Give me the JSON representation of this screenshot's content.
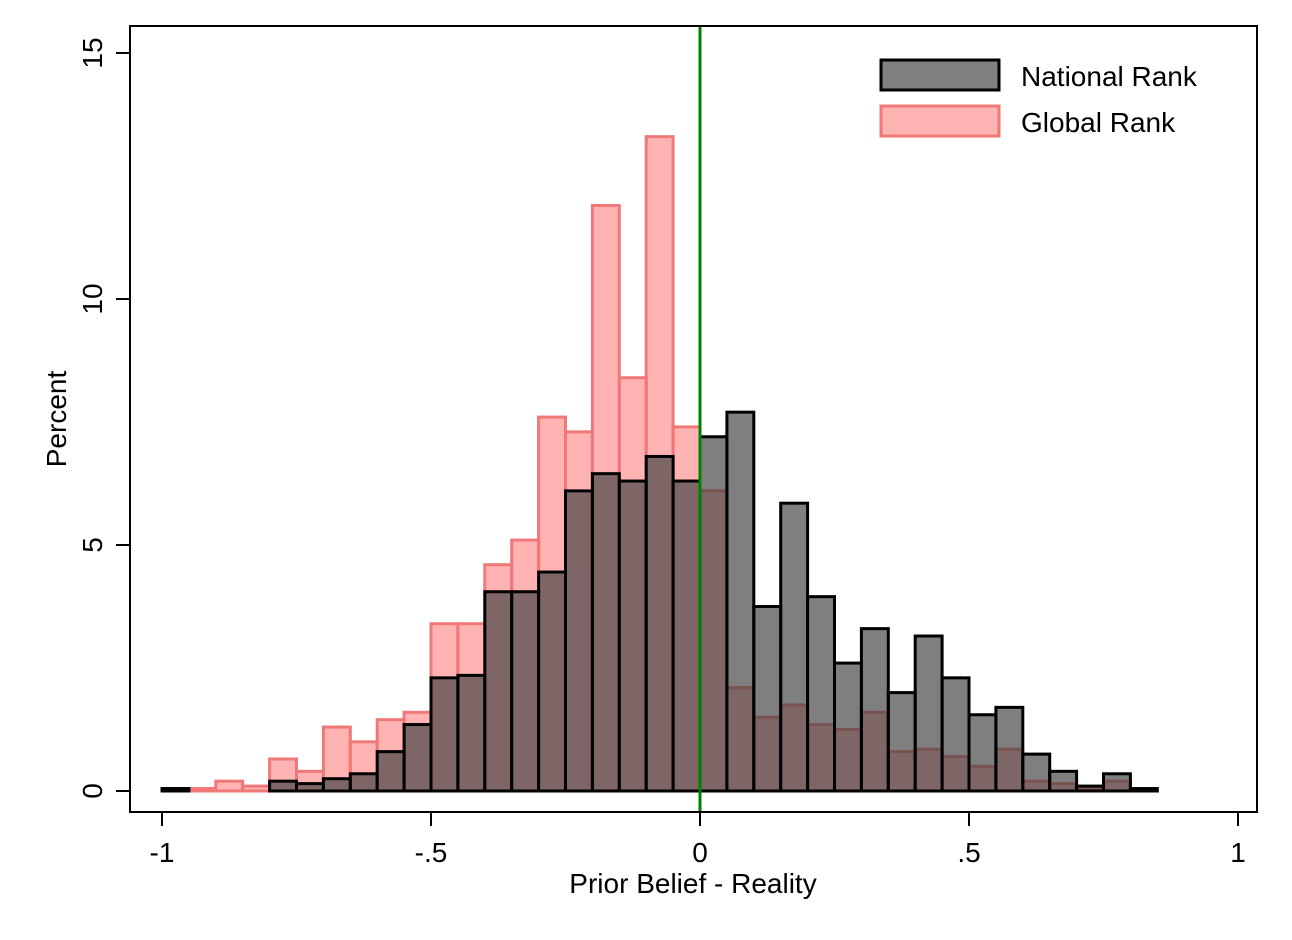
{
  "chart_data": {
    "type": "bar",
    "xlabel": "Prior Belief - Reality",
    "ylabel": "Percent",
    "xlim": [
      -1,
      1
    ],
    "ylim": [
      0,
      15
    ],
    "x_ticks": [
      {
        "value": -1,
        "label": "-1"
      },
      {
        "value": -0.5,
        "label": "-.5"
      },
      {
        "value": 0,
        "label": "0"
      },
      {
        "value": 0.5,
        "label": ".5"
      },
      {
        "value": 1,
        "label": "1"
      }
    ],
    "y_ticks": [
      {
        "value": 0,
        "label": "0"
      },
      {
        "value": 5,
        "label": "5"
      },
      {
        "value": 10,
        "label": "10"
      },
      {
        "value": 15,
        "label": "15"
      }
    ],
    "bin_width": 0.05,
    "reference_line": {
      "x": 0,
      "color": "#008000"
    },
    "legend_position": "top-right",
    "series": [
      {
        "name": "Global Rank",
        "fill": "#ff8080",
        "fill_opacity": 0.6,
        "stroke": "#f07878",
        "bins": [
          {
            "x0": -1.0,
            "value": 0.05
          },
          {
            "x0": -0.95,
            "value": 0.05
          },
          {
            "x0": -0.9,
            "value": 0.2
          },
          {
            "x0": -0.85,
            "value": 0.1
          },
          {
            "x0": -0.8,
            "value": 0.65
          },
          {
            "x0": -0.75,
            "value": 0.4
          },
          {
            "x0": -0.7,
            "value": 1.3
          },
          {
            "x0": -0.65,
            "value": 1.0
          },
          {
            "x0": -0.6,
            "value": 1.45
          },
          {
            "x0": -0.55,
            "value": 1.6
          },
          {
            "x0": -0.5,
            "value": 3.4
          },
          {
            "x0": -0.45,
            "value": 3.4
          },
          {
            "x0": -0.4,
            "value": 4.6
          },
          {
            "x0": -0.35,
            "value": 5.1
          },
          {
            "x0": -0.3,
            "value": 7.6
          },
          {
            "x0": -0.25,
            "value": 7.3
          },
          {
            "x0": -0.2,
            "value": 11.9
          },
          {
            "x0": -0.15,
            "value": 8.4
          },
          {
            "x0": -0.1,
            "value": 13.3
          },
          {
            "x0": -0.05,
            "value": 7.4
          },
          {
            "x0": 0.0,
            "value": 6.1
          },
          {
            "x0": 0.05,
            "value": 2.1
          },
          {
            "x0": 0.1,
            "value": 1.5
          },
          {
            "x0": 0.15,
            "value": 1.75
          },
          {
            "x0": 0.2,
            "value": 1.35
          },
          {
            "x0": 0.25,
            "value": 1.25
          },
          {
            "x0": 0.3,
            "value": 1.6
          },
          {
            "x0": 0.35,
            "value": 0.8
          },
          {
            "x0": 0.4,
            "value": 0.85
          },
          {
            "x0": 0.45,
            "value": 0.7
          },
          {
            "x0": 0.5,
            "value": 0.5
          },
          {
            "x0": 0.55,
            "value": 0.85
          },
          {
            "x0": 0.6,
            "value": 0.2
          },
          {
            "x0": 0.65,
            "value": 0.15
          },
          {
            "x0": 0.7,
            "value": 0.05
          },
          {
            "x0": 0.75,
            "value": 0.2
          }
        ]
      },
      {
        "name": "National Rank",
        "fill": "#404040",
        "fill_opacity": 0.67,
        "stroke": "#000000",
        "bins": [
          {
            "x0": -1.0,
            "value": 0.05
          },
          {
            "x0": -0.95,
            "value": 0.0
          },
          {
            "x0": -0.9,
            "value": 0.0
          },
          {
            "x0": -0.85,
            "value": 0.0
          },
          {
            "x0": -0.8,
            "value": 0.2
          },
          {
            "x0": -0.75,
            "value": 0.15
          },
          {
            "x0": -0.7,
            "value": 0.25
          },
          {
            "x0": -0.65,
            "value": 0.35
          },
          {
            "x0": -0.6,
            "value": 0.8
          },
          {
            "x0": -0.55,
            "value": 1.35
          },
          {
            "x0": -0.5,
            "value": 2.3
          },
          {
            "x0": -0.45,
            "value": 2.35
          },
          {
            "x0": -0.4,
            "value": 4.05
          },
          {
            "x0": -0.35,
            "value": 4.05
          },
          {
            "x0": -0.3,
            "value": 4.45
          },
          {
            "x0": -0.25,
            "value": 6.1
          },
          {
            "x0": -0.2,
            "value": 6.45
          },
          {
            "x0": -0.15,
            "value": 6.3
          },
          {
            "x0": -0.1,
            "value": 6.8
          },
          {
            "x0": -0.05,
            "value": 6.3
          },
          {
            "x0": 0.0,
            "value": 7.2
          },
          {
            "x0": 0.05,
            "value": 7.7
          },
          {
            "x0": 0.1,
            "value": 3.75
          },
          {
            "x0": 0.15,
            "value": 5.85
          },
          {
            "x0": 0.2,
            "value": 3.95
          },
          {
            "x0": 0.25,
            "value": 2.6
          },
          {
            "x0": 0.3,
            "value": 3.3
          },
          {
            "x0": 0.35,
            "value": 2.0
          },
          {
            "x0": 0.4,
            "value": 3.15
          },
          {
            "x0": 0.45,
            "value": 2.3
          },
          {
            "x0": 0.5,
            "value": 1.55
          },
          {
            "x0": 0.55,
            "value": 1.7
          },
          {
            "x0": 0.6,
            "value": 0.75
          },
          {
            "x0": 0.65,
            "value": 0.4
          },
          {
            "x0": 0.7,
            "value": 0.1
          },
          {
            "x0": 0.75,
            "value": 0.35
          },
          {
            "x0": 0.8,
            "value": 0.05
          }
        ]
      }
    ],
    "legend": [
      {
        "name": "National Rank",
        "fill": "#808080",
        "stroke": "#000000"
      },
      {
        "name": "Global Rank",
        "fill": "#ffb3b3",
        "stroke": "#f07878"
      }
    ]
  }
}
